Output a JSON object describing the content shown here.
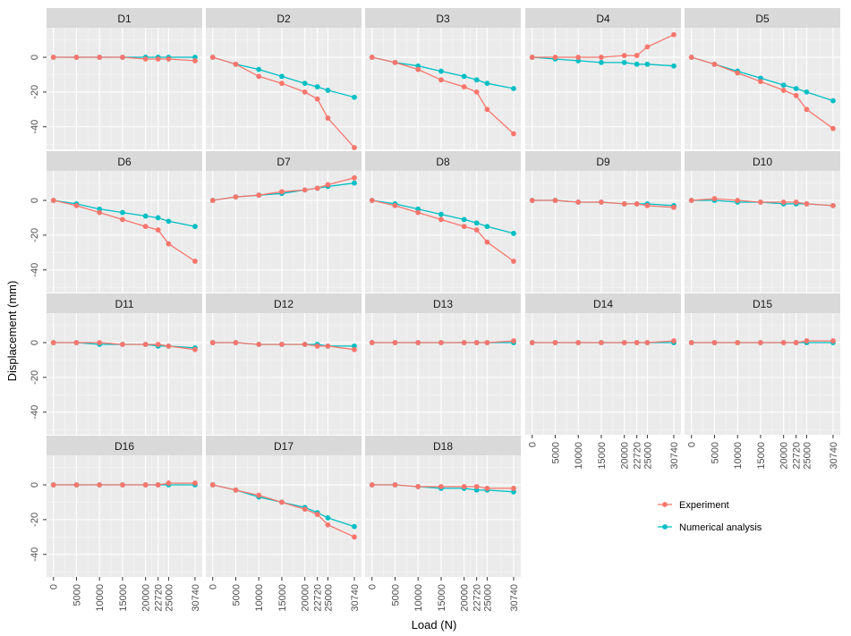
{
  "chart_data": {
    "type": "line",
    "xlabel": "Load (N)",
    "ylabel": "Displacement (mm)",
    "x_ticks": [
      0,
      5000,
      10000,
      15000,
      20000,
      22720,
      25000,
      30740
    ],
    "x_tick_labels": [
      "0",
      "5000",
      "10000",
      "15000",
      "20000",
      "22720",
      "25000",
      "30740"
    ],
    "y_ticks": [
      0,
      -20,
      -40
    ],
    "y_tick_labels": [
      "0",
      "-20",
      "-40"
    ],
    "ylim": [
      -53,
      17
    ],
    "xlim": [
      -1500,
      32300
    ],
    "grid": true,
    "legend_position": "right",
    "x": [
      0,
      5000,
      10000,
      15000,
      20000,
      22720,
      25000,
      30740
    ],
    "series": [
      {
        "name": "Experiment",
        "color": "#F8766D"
      },
      {
        "name": "Numerical analysis",
        "color": "#00BFC4"
      }
    ],
    "panels": [
      {
        "label": "D1",
        "experiment": [
          0,
          0,
          0,
          0,
          -1,
          -1,
          -1,
          -2
        ],
        "numerical": [
          0,
          0,
          0,
          0,
          0,
          0,
          0,
          0
        ]
      },
      {
        "label": "D2",
        "experiment": [
          0,
          -4,
          -11,
          -15,
          -20,
          -24,
          -35,
          -52
        ],
        "numerical": [
          0,
          -4,
          -7,
          -11,
          -15,
          -17,
          -19,
          -23
        ]
      },
      {
        "label": "D3",
        "experiment": [
          0,
          -3,
          -7,
          -13,
          -17,
          -20,
          -30,
          -44
        ],
        "numerical": [
          0,
          -3,
          -5,
          -8,
          -11,
          -13,
          -15,
          -18
        ]
      },
      {
        "label": "D4",
        "experiment": [
          0,
          0,
          0,
          0,
          1,
          1,
          6,
          13
        ],
        "numerical": [
          0,
          -1,
          -2,
          -3,
          -3,
          -4,
          -4,
          -5
        ]
      },
      {
        "label": "D5",
        "experiment": [
          0,
          -4,
          -9,
          -14,
          -19,
          -22,
          -30,
          -41
        ],
        "numerical": [
          0,
          -4,
          -8,
          -12,
          -16,
          -18,
          -20,
          -25
        ]
      },
      {
        "label": "D6",
        "experiment": [
          0,
          -3,
          -7,
          -11,
          -15,
          -17,
          -25,
          -35
        ],
        "numerical": [
          0,
          -2,
          -5,
          -7,
          -9,
          -10,
          -12,
          -15
        ]
      },
      {
        "label": "D7",
        "experiment": [
          0,
          2,
          3,
          5,
          6,
          7,
          9,
          13
        ],
        "numerical": [
          0,
          2,
          3,
          4,
          6,
          7,
          8,
          10
        ]
      },
      {
        "label": "D8",
        "experiment": [
          0,
          -3,
          -7,
          -11,
          -15,
          -17,
          -24,
          -35
        ],
        "numerical": [
          0,
          -2,
          -5,
          -8,
          -11,
          -13,
          -15,
          -19
        ]
      },
      {
        "label": "D9",
        "experiment": [
          0,
          0,
          -1,
          -1,
          -2,
          -2,
          -3,
          -4
        ],
        "numerical": [
          0,
          0,
          -1,
          -1,
          -2,
          -2,
          -2,
          -3
        ]
      },
      {
        "label": "D10",
        "experiment": [
          0,
          1,
          0,
          -1,
          -1,
          -1,
          -2,
          -3
        ],
        "numerical": [
          0,
          0,
          -1,
          -1,
          -2,
          -2,
          -2,
          -3
        ]
      },
      {
        "label": "D11",
        "experiment": [
          0,
          0,
          0,
          -1,
          -1,
          -1,
          -2,
          -4
        ],
        "numerical": [
          0,
          0,
          -1,
          -1,
          -1,
          -2,
          -2,
          -3
        ]
      },
      {
        "label": "D12",
        "experiment": [
          0,
          0,
          -1,
          -1,
          -1,
          -2,
          -2,
          -4
        ],
        "numerical": [
          0,
          0,
          -1,
          -1,
          -1,
          -1,
          -2,
          -2
        ]
      },
      {
        "label": "D13",
        "experiment": [
          0,
          0,
          0,
          0,
          0,
          0,
          0,
          1
        ],
        "numerical": [
          0,
          0,
          0,
          0,
          0,
          0,
          0,
          0
        ]
      },
      {
        "label": "D14",
        "experiment": [
          0,
          0,
          0,
          0,
          0,
          0,
          0,
          1
        ],
        "numerical": [
          0,
          0,
          0,
          0,
          0,
          0,
          0,
          0
        ]
      },
      {
        "label": "D15",
        "experiment": [
          0,
          0,
          0,
          0,
          0,
          0,
          1,
          1
        ],
        "numerical": [
          0,
          0,
          0,
          0,
          0,
          0,
          0,
          0
        ]
      },
      {
        "label": "D16",
        "experiment": [
          0,
          0,
          0,
          0,
          0,
          0,
          1,
          1
        ],
        "numerical": [
          0,
          0,
          0,
          0,
          0,
          0,
          0,
          0
        ]
      },
      {
        "label": "D17",
        "experiment": [
          0,
          -3,
          -6,
          -10,
          -14,
          -17,
          -23,
          -30
        ],
        "numerical": [
          0,
          -3,
          -7,
          -10,
          -13,
          -16,
          -19,
          -24
        ]
      },
      {
        "label": "D18",
        "experiment": [
          0,
          0,
          -1,
          -1,
          -1,
          -1,
          -2,
          -2
        ],
        "numerical": [
          0,
          0,
          -1,
          -2,
          -2,
          -3,
          -3,
          -4
        ]
      }
    ]
  }
}
